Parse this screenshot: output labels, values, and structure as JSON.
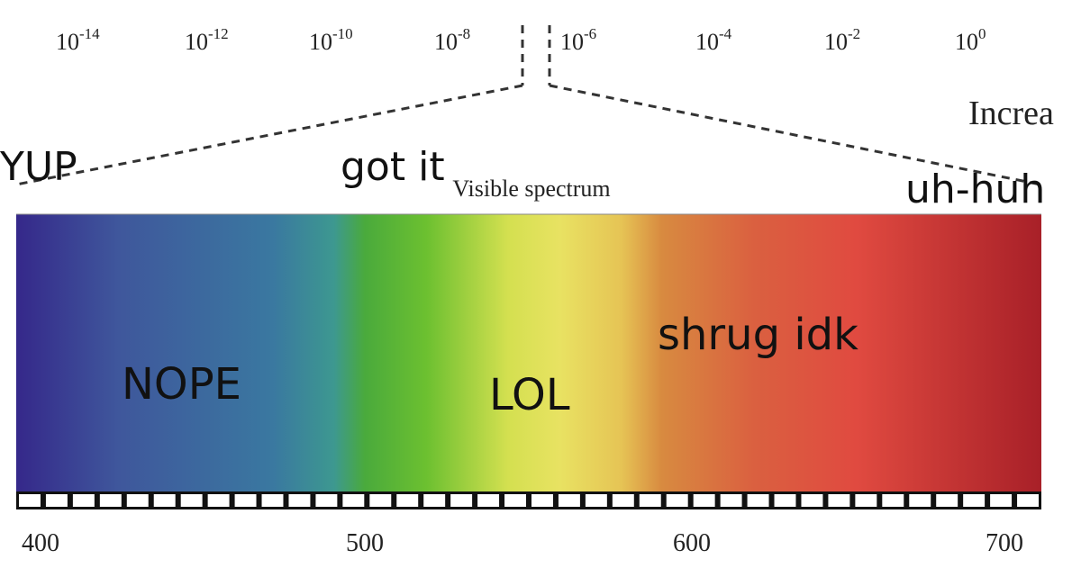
{
  "top_scale": [
    {
      "base": "10",
      "exp": "-14"
    },
    {
      "base": "10",
      "exp": "-12"
    },
    {
      "base": "10",
      "exp": "-10"
    },
    {
      "base": "10",
      "exp": "-8"
    },
    {
      "base": "10",
      "exp": "-6"
    },
    {
      "base": "10",
      "exp": "-4"
    },
    {
      "base": "10",
      "exp": "-2"
    },
    {
      "base": "10",
      "exp": "0"
    }
  ],
  "side_note": "Increa",
  "caption": "Visible spectrum",
  "meme_labels": {
    "left_edge": "YUP",
    "center": "got it",
    "right_edge": "uh-huh",
    "blue": "NOPE",
    "yellow": "LOL",
    "red": "shrug idk"
  },
  "wavelength_axis": [
    "400",
    "500",
    "600",
    "700"
  ]
}
